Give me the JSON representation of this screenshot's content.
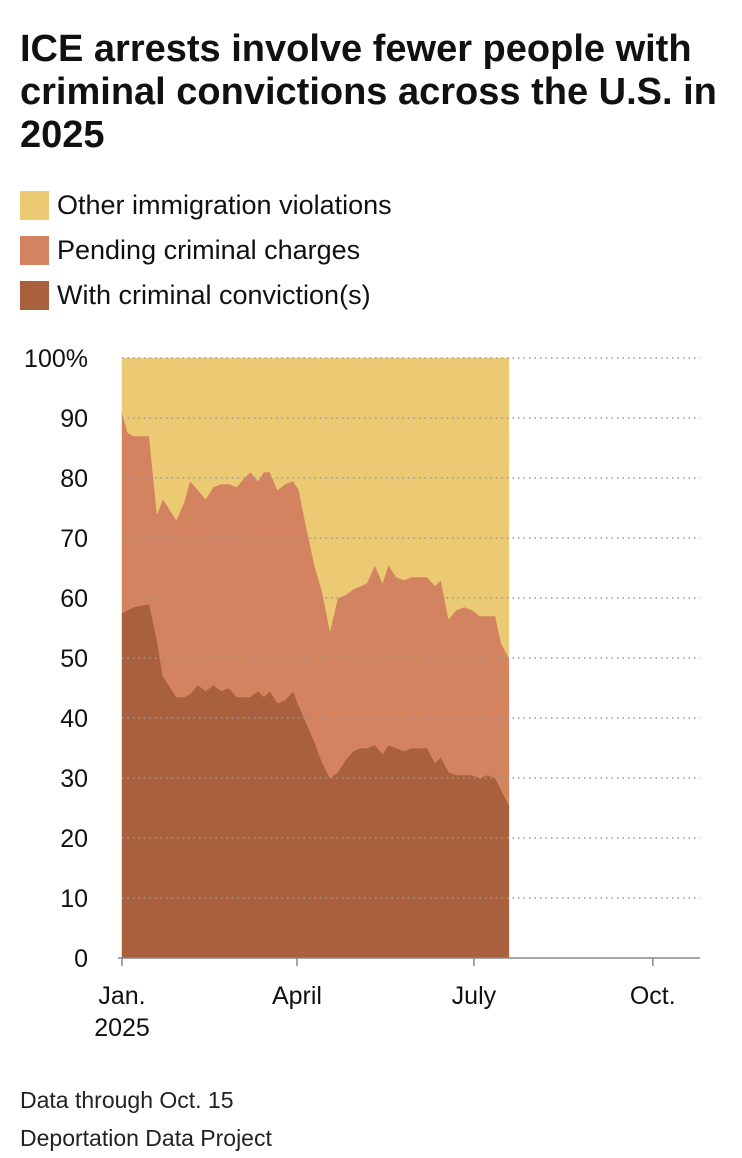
{
  "title": "ICE arrests involve fewer people with criminal convictions across the U.S. in 2025",
  "notes": {
    "data_through": "Data through Oct. 15",
    "source": "Deportation Data Project"
  },
  "chart_data": {
    "type": "area",
    "stacked": true,
    "x_start": "2025-01-01",
    "x_end": "2025-10-15",
    "ylim": [
      0,
      100
    ],
    "yticks": [
      0,
      10,
      20,
      30,
      40,
      50,
      60,
      70,
      80,
      90,
      100
    ],
    "ytick_labels": [
      "0",
      "10",
      "20",
      "30",
      "40",
      "50",
      "60",
      "70",
      "80",
      "90",
      "100%"
    ],
    "xticks": [
      {
        "date": "2025-01-01",
        "label": "Jan.",
        "label2": "2025"
      },
      {
        "date": "2025-04-01",
        "label": "April",
        "label2": ""
      },
      {
        "date": "2025-07-01",
        "label": "July",
        "label2": ""
      },
      {
        "date": "2025-10-01",
        "label": "Oct.",
        "label2": ""
      }
    ],
    "grid": "horizontal-dotted",
    "legend_position": "top",
    "x": [
      "2025-01-01",
      "2025-01-04",
      "2025-01-07",
      "2025-01-15",
      "2025-01-19",
      "2025-01-22",
      "2025-01-29",
      "2025-02-02",
      "2025-02-05",
      "2025-02-09",
      "2025-02-13",
      "2025-02-17",
      "2025-02-21",
      "2025-02-25",
      "2025-03-01",
      "2025-03-05",
      "2025-03-08",
      "2025-03-12",
      "2025-03-15",
      "2025-03-18",
      "2025-03-22",
      "2025-03-26",
      "2025-03-30",
      "2025-04-02",
      "2025-04-06",
      "2025-04-10",
      "2025-04-14",
      "2025-04-18",
      "2025-04-22",
      "2025-04-26",
      "2025-04-30",
      "2025-05-04",
      "2025-05-07",
      "2025-05-11",
      "2025-05-15",
      "2025-05-18",
      "2025-05-22",
      "2025-05-26",
      "2025-05-30",
      "2025-06-03",
      "2025-06-07",
      "2025-06-11",
      "2025-06-14",
      "2025-06-18",
      "2025-06-22",
      "2025-06-26",
      "2025-06-30",
      "2025-07-04",
      "2025-07-08",
      "2025-07-12",
      "2025-07-15",
      "2025-07-19",
      "2025-07-23",
      "2025-07-27",
      "2025-07-31",
      "2025-08-03",
      "2025-08-07",
      "2025-08-11",
      "2025-08-14",
      "2025-08-18",
      "2025-08-22",
      "2025-08-26",
      "2025-08-30",
      "2025-09-03",
      "2025-09-07",
      "2025-09-11",
      "2025-09-14",
      "2025-09-18",
      "2025-09-22",
      "2025-09-26",
      "2025-09-30",
      "2025-10-04",
      "2025-10-08",
      "2025-10-12",
      "2025-10-15"
    ],
    "series": [
      {
        "name": "With criminal conviction(s)",
        "color": "#a8613c",
        "values": [
          57.5,
          58,
          58.5,
          59,
          53,
          47,
          43.5,
          43.5,
          44,
          45.5,
          44.5,
          45.5,
          44.5,
          45,
          43.5,
          43.5,
          43.5,
          44.5,
          43.5,
          44.5,
          42.5,
          43,
          44.5,
          42,
          39,
          36,
          32.5,
          30,
          31,
          33,
          34.5,
          35,
          35,
          35.5,
          34,
          35.5,
          35,
          34.5,
          35,
          35,
          35,
          32.5,
          33.5,
          31,
          30.5,
          30.5,
          30.5,
          30,
          30.5,
          30,
          28,
          25.5,
          null,
          null,
          null,
          null,
          null,
          null,
          null,
          null,
          null,
          null,
          null,
          null,
          null,
          null,
          null,
          null,
          null,
          null,
          null,
          null,
          null,
          null,
          null
        ]
      },
      {
        "name": "Pending criminal charges",
        "color": "#d48360",
        "values": [
          33.5,
          29.5,
          28.5,
          28,
          21,
          29.5,
          29.5,
          32.5,
          35.5,
          32.5,
          32,
          33,
          34.5,
          34,
          35,
          36.5,
          37.5,
          35,
          37.5,
          36.5,
          35.5,
          36,
          35,
          36,
          32.5,
          29.5,
          28.5,
          24.5,
          29,
          27.5,
          27,
          27,
          27.5,
          30,
          28.5,
          30,
          28.5,
          28.5,
          28.5,
          28.5,
          28.5,
          29.5,
          29.5,
          25.5,
          27.5,
          28,
          27.5,
          27,
          26.5,
          27,
          24.5,
          24.5,
          null,
          null,
          null,
          null,
          null,
          null,
          null,
          null,
          null,
          null,
          null,
          null,
          null,
          null,
          null,
          null,
          null,
          null,
          null,
          null,
          null,
          null,
          null
        ]
      },
      {
        "name": "Other immigration violations",
        "color": "#ecc973",
        "values": [
          9,
          12.5,
          13,
          13,
          26,
          23.5,
          27,
          24,
          20.5,
          22,
          23.5,
          21.5,
          21,
          21,
          21.5,
          20,
          19,
          20.5,
          19,
          19,
          22,
          21,
          20.5,
          22,
          28.5,
          34.5,
          39,
          45.5,
          40,
          39.5,
          38.5,
          38,
          37.5,
          34.5,
          37.5,
          34.5,
          36.5,
          37,
          36.5,
          36.5,
          36.5,
          38,
          37,
          43.5,
          42,
          41.5,
          42,
          43,
          43,
          43,
          47.5,
          50,
          null,
          null,
          null,
          null,
          null,
          null,
          null,
          null,
          null,
          null,
          null,
          null,
          null,
          null,
          null,
          null,
          null,
          null,
          null,
          null,
          null,
          null,
          null
        ]
      }
    ]
  }
}
